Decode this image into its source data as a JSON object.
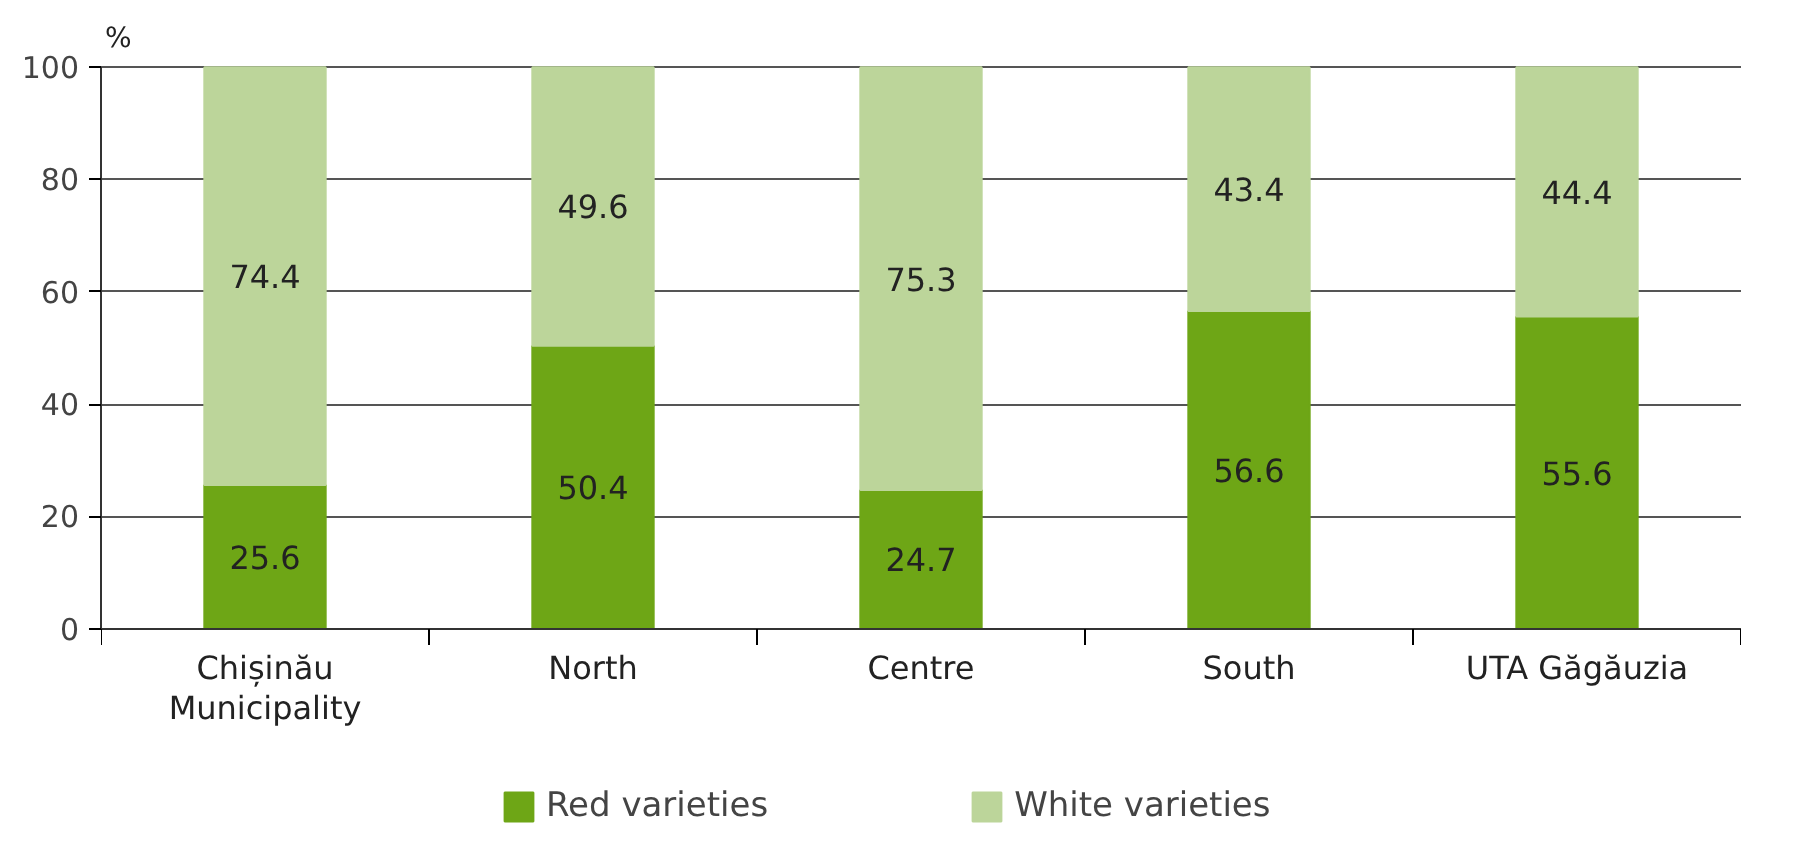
{
  "chart_data": {
    "type": "bar",
    "stacked": true,
    "ylabel": "%",
    "categories": [
      "Chișinău Municipality",
      "North",
      "Centre",
      "South",
      "UTA Găgăuzia"
    ],
    "series": [
      {
        "name": "Red varieties",
        "color": "#6ea616",
        "values": [
          25.6,
          50.4,
          24.7,
          56.6,
          55.6
        ]
      },
      {
        "name": "White varieties",
        "color": "#bcd59a",
        "values": [
          74.4,
          49.6,
          75.3,
          43.4,
          44.4
        ]
      }
    ],
    "ylim": [
      0,
      100
    ],
    "yticks": [
      0,
      20,
      40,
      60,
      80,
      100
    ],
    "grid": "y",
    "legend": "bottom",
    "data_labels": true
  }
}
